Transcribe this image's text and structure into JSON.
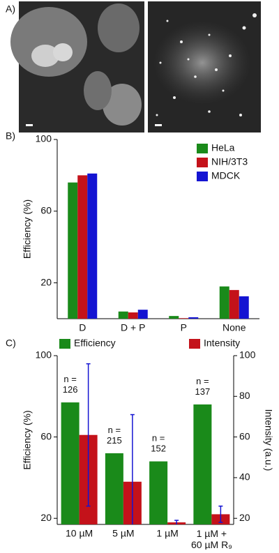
{
  "panel_labels": [
    "A)",
    "B)",
    "C)"
  ],
  "chart_data": [
    {
      "type": "bar",
      "ylabel": "Efficiency (%)",
      "categories": [
        "D",
        "D + P",
        "P",
        "None"
      ],
      "series": [
        {
          "name": "HeLa",
          "color": "#1a8a1a",
          "values": [
            76,
            4,
            1.5,
            18
          ]
        },
        {
          "name": "NIH/3T3",
          "color": "#c4121a",
          "values": [
            80,
            3.5,
            0.3,
            16
          ]
        },
        {
          "name": "MDCK",
          "color": "#1414d2",
          "values": [
            81,
            5,
            0.8,
            12.5
          ]
        }
      ],
      "ylim": [
        0,
        100
      ],
      "yticks": [
        20,
        60,
        100
      ],
      "legend": "upper right"
    },
    {
      "type": "bar",
      "ylabel": "Efficiency (%)",
      "y2label": "Intensity (a.u.)",
      "categories": [
        "10 µM",
        "5 µM",
        "1 µM",
        "1 µM +\n60 µM R₉"
      ],
      "annotations": [
        "n =\n126",
        "n =\n215",
        "n =\n152",
        "n =\n137"
      ],
      "series": [
        {
          "name": "Efficiency",
          "color": "#1a8a1a",
          "values": [
            77,
            52,
            48,
            76
          ]
        },
        {
          "name": "Intensity",
          "color": "#c4121a",
          "axis": "y2",
          "values": [
            61,
            38,
            18,
            22
          ],
          "errors": [
            35,
            33,
            1,
            4
          ]
        }
      ],
      "ylim": [
        17,
        100
      ],
      "yticks": [
        20,
        60,
        100
      ],
      "y2lim": [
        17,
        100
      ],
      "y2ticks": [
        20,
        40,
        60,
        80,
        100
      ],
      "legend": "top"
    }
  ]
}
